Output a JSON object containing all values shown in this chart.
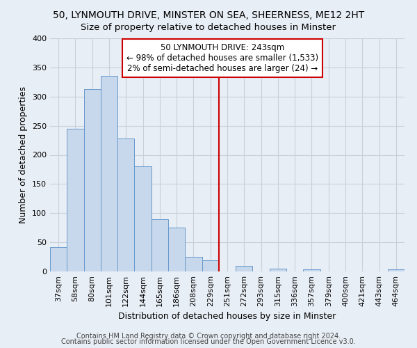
{
  "title": "50, LYNMOUTH DRIVE, MINSTER ON SEA, SHEERNESS, ME12 2HT",
  "subtitle": "Size of property relative to detached houses in Minster",
  "xlabel": "Distribution of detached houses by size in Minster",
  "ylabel": "Number of detached properties",
  "bar_labels": [
    "37sqm",
    "58sqm",
    "80sqm",
    "101sqm",
    "122sqm",
    "144sqm",
    "165sqm",
    "186sqm",
    "208sqm",
    "229sqm",
    "251sqm",
    "272sqm",
    "293sqm",
    "315sqm",
    "336sqm",
    "357sqm",
    "379sqm",
    "400sqm",
    "421sqm",
    "443sqm",
    "464sqm"
  ],
  "bar_values": [
    42,
    245,
    313,
    335,
    228,
    180,
    90,
    75,
    25,
    19,
    0,
    10,
    0,
    5,
    0,
    4,
    0,
    0,
    0,
    0,
    3
  ],
  "bar_color": "#c8d8ec",
  "bar_edge_color": "#6699cc",
  "vline_x": 10,
  "vline_color": "#cc0000",
  "annotation_line1": "50 LYNMOUTH DRIVE: 243sqm",
  "annotation_line2": "← 98% of detached houses are smaller (1,533)",
  "annotation_line3": "2% of semi-detached houses are larger (24) →",
  "annotation_box_facecolor": "#ffffff",
  "annotation_box_edgecolor": "#cc0000",
  "ylim": [
    0,
    400
  ],
  "yticks": [
    0,
    50,
    100,
    150,
    200,
    250,
    300,
    350,
    400
  ],
  "footer1": "Contains HM Land Registry data © Crown copyright and database right 2024.",
  "footer2": "Contains public sector information licensed under the Open Government Licence v3.0.",
  "bg_color": "#e8eef5",
  "grid_color": "#c8d0dc",
  "title_fontsize": 10,
  "xlabel_fontsize": 9,
  "ylabel_fontsize": 9,
  "tick_fontsize": 8,
  "annotation_fontsize": 8.5,
  "footer_fontsize": 7
}
